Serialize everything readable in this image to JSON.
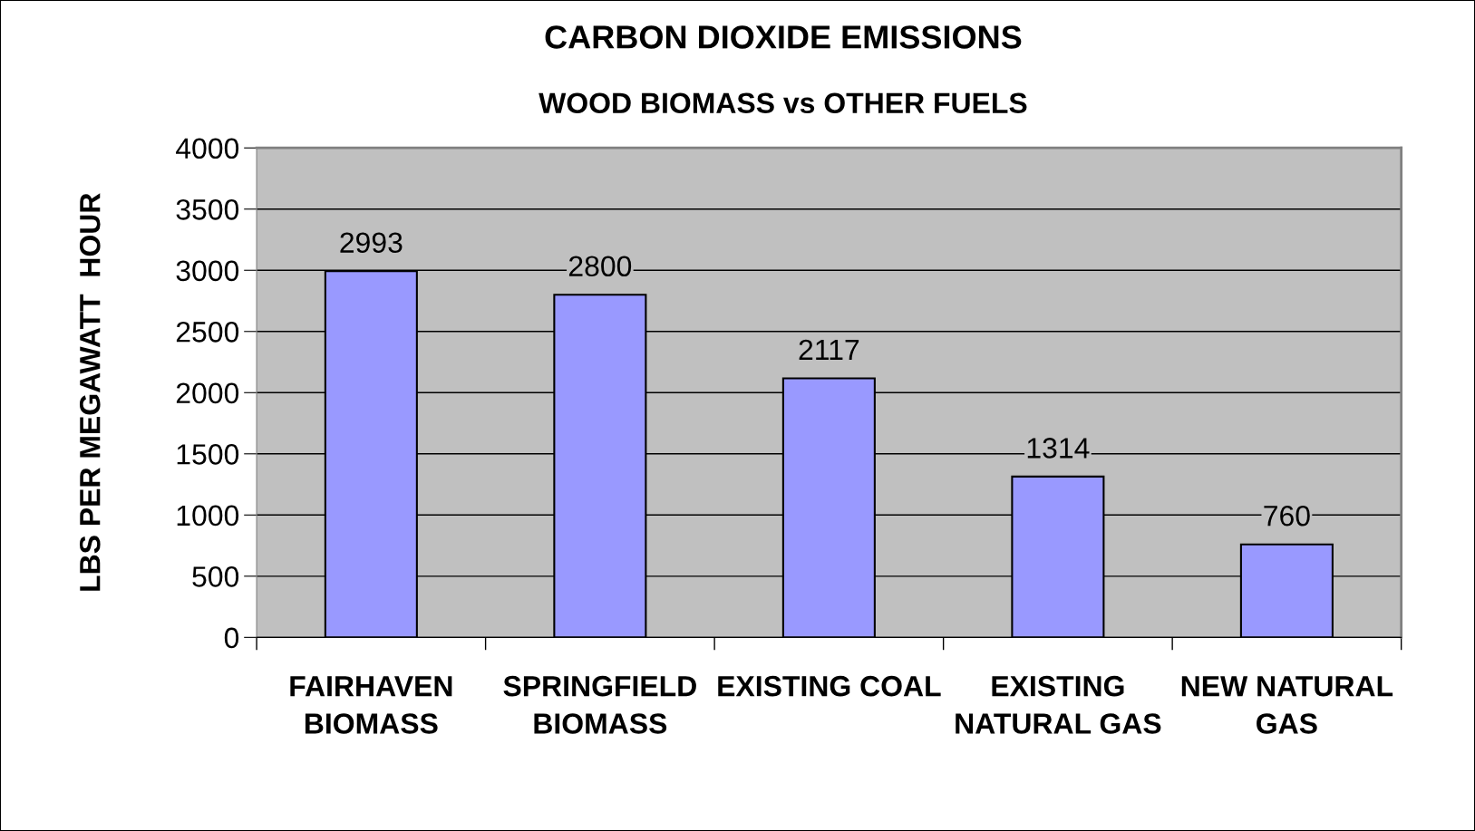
{
  "chart_data": {
    "type": "bar",
    "title": "CARBON DIOXIDE EMISSIONS",
    "subtitle": "WOOD BIOMASS vs OTHER FUELS",
    "ylabel": "LBS PER MEGAWATT  HOUR",
    "categories": [
      "FAIRHAVEN\nBIOMASS",
      "SPRINGFIELD\nBIOMASS",
      "EXISTING COAL",
      "EXISTING\nNATURAL GAS",
      "NEW NATURAL\nGAS"
    ],
    "values": [
      2993,
      2800,
      2117,
      1314,
      760
    ],
    "color": "#9999ff",
    "ylim": [
      0,
      4000
    ],
    "yticks": [
      0,
      500,
      1000,
      1500,
      2000,
      2500,
      3000,
      3500,
      4000
    ],
    "grid": "y",
    "data_labels": true
  }
}
